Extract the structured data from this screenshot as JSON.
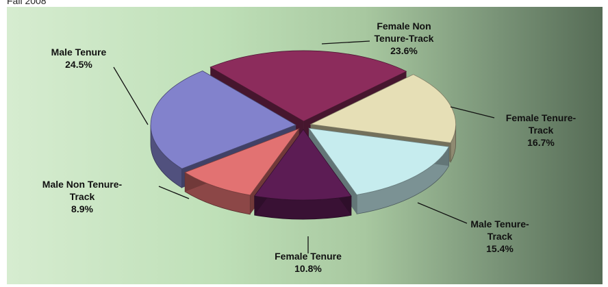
{
  "chart_data": {
    "type": "pie",
    "title": "Fall 2008",
    "categories": [
      "Female Non Tenure-Track",
      "Female Tenure-Track",
      "Male Tenure-Track",
      "Female Tenure",
      "Male Non Tenure-Track",
      "Male Tenure"
    ],
    "values": [
      23.6,
      16.7,
      15.4,
      10.8,
      8.9,
      24.5
    ],
    "value_labels": [
      "23.6%",
      "16.7%",
      "15.4%",
      "10.8%",
      "8.9%",
      "24.5%"
    ],
    "colors": [
      "#8c2c5c",
      "#e6dfb6",
      "#c6ecee",
      "#5c1c54",
      "#e27272",
      "#8282cc"
    ]
  }
}
